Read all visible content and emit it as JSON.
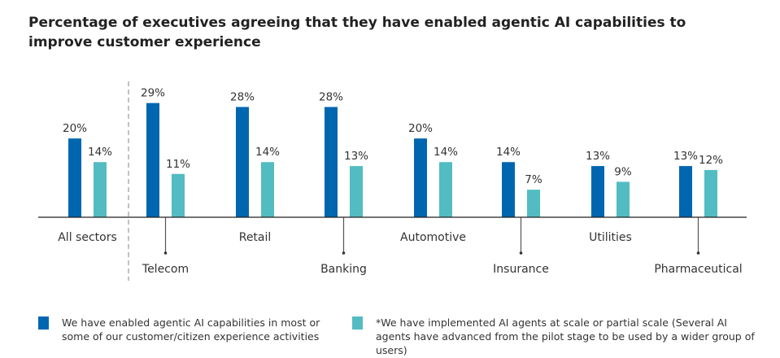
{
  "chart_data": {
    "type": "bar",
    "title": "Percentage of executives agreeing that they have enabled agentic AI capabilities to improve customer experience",
    "categories": [
      "All sectors",
      "Telecom",
      "Retail",
      "Banking",
      "Automotive",
      "Insurance",
      "Utilities",
      "Pharmaceutical"
    ],
    "series": [
      {
        "name": "We have enabled agentic AI capabilities in most or some of our customer/citizen experience activities",
        "color": "#0066b0",
        "values": [
          20,
          29,
          28,
          28,
          20,
          14,
          13,
          13
        ]
      },
      {
        "name": "*We have implemented AI agents at scale or partial scale (Several AI agents have advanced from the pilot stage to be used by a wider group of users)",
        "color": "#52bcc2",
        "values": [
          14,
          11,
          14,
          13,
          14,
          7,
          9,
          12
        ]
      }
    ],
    "value_suffix": "%",
    "ylim": [
      0,
      30
    ],
    "grid": false,
    "legend_position": "bottom"
  }
}
